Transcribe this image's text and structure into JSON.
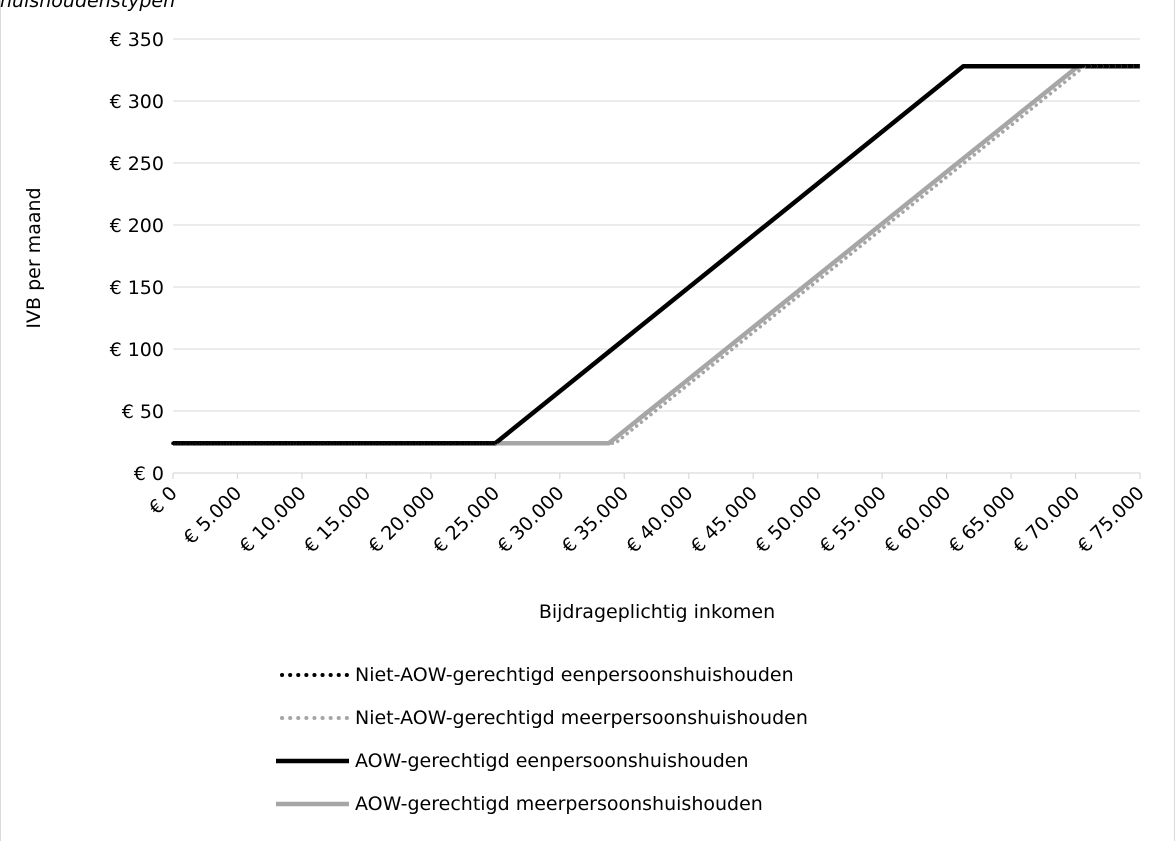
{
  "caption": "huishoudenstypen",
  "chart_data": {
    "type": "line",
    "xlabel": "Bijdrageplichtig inkomen",
    "ylabel": "IVB per maand",
    "xlim": [
      0,
      75000
    ],
    "ylim": [
      0,
      350
    ],
    "x_ticks": [
      0,
      5000,
      10000,
      15000,
      20000,
      25000,
      30000,
      35000,
      40000,
      45000,
      50000,
      55000,
      60000,
      65000,
      70000,
      75000
    ],
    "x_tick_labels": [
      "€ 0",
      "€ 5.000",
      "€ 10.000",
      "€ 15.000",
      "€ 20.000",
      "€ 25.000",
      "€ 30.000",
      "€ 35.000",
      "€ 40.000",
      "€ 45.000",
      "€ 50.000",
      "€ 55.000",
      "€ 60.000",
      "€ 65.000",
      "€ 70.000",
      "€ 75.000"
    ],
    "y_ticks": [
      0,
      50,
      100,
      150,
      200,
      250,
      300,
      350
    ],
    "y_tick_labels": [
      "€ 0",
      "€ 50",
      "€ 100",
      "€ 150",
      "€ 200",
      "€ 250",
      "€ 300",
      "€ 350"
    ],
    "grid": "horizontal",
    "legend_position": "bottom",
    "series": [
      {
        "name": "Niet-AOW-gerechtigd eenpersoonshuishouden",
        "color": "#000000",
        "style": "dotted",
        "x": [
          0,
          25000,
          61300,
          75000
        ],
        "y": [
          24,
          24,
          328,
          328
        ]
      },
      {
        "name": "Niet-AOW-gerechtigd meerpersoonshuishouden",
        "color": "#a6a6a6",
        "style": "dotted",
        "x": [
          0,
          34300,
          70700,
          75000
        ],
        "y": [
          24,
          24,
          328,
          328
        ]
      },
      {
        "name": "AOW-gerechtigd eenpersoonshuishouden",
        "color": "#000000",
        "style": "solid",
        "x": [
          0,
          25000,
          61300,
          75000
        ],
        "y": [
          24,
          24,
          328,
          328
        ]
      },
      {
        "name": "AOW-gerechtigd meerpersoonshuishouden",
        "color": "#a6a6a6",
        "style": "solid",
        "x": [
          0,
          33800,
          70200,
          75000
        ],
        "y": [
          24,
          24,
          328,
          328
        ]
      }
    ]
  }
}
